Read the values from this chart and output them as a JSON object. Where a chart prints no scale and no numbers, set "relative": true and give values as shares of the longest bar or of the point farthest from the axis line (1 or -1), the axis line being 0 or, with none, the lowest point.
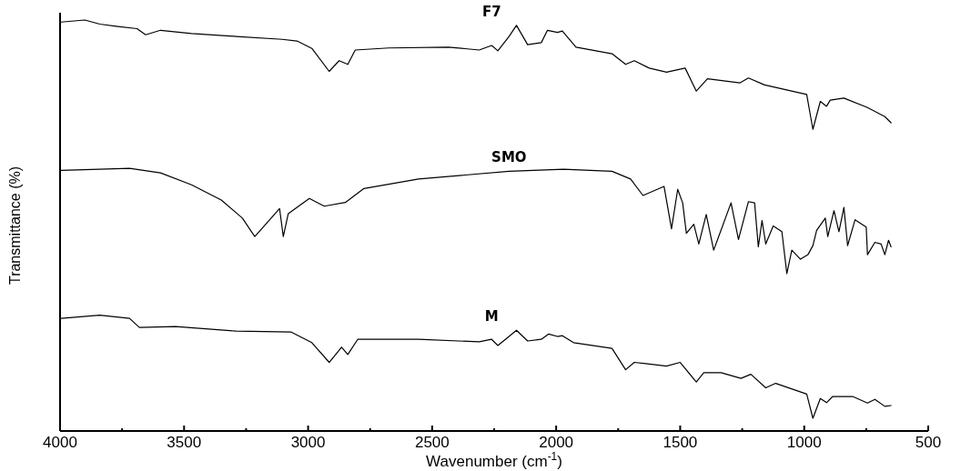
{
  "chart_data": {
    "type": "line",
    "relative": true,
    "xlabel": "Wavenumber (cm$^{-1}$)",
    "ylabel": "Transmittance (%)",
    "xlim": [
      4000,
      500
    ],
    "xticks": [
      4000,
      {
        "value": 3750,
        "label": null
      },
      3500,
      {
        "value": 3250,
        "label": null
      },
      3000,
      {
        "value": 2750,
        "label": null
      },
      2500,
      {
        "value": 2250,
        "label": null
      },
      2000,
      {
        "value": 1750,
        "label": null
      },
      1500,
      {
        "value": 1250,
        "label": null
      },
      1000,
      {
        "value": 750,
        "label": null
      },
      500
    ],
    "grid": false,
    "marker": "none",
    "line_style": "solid",
    "series": [
      {
        "name": "F7",
        "color": "#000000",
        "x": [
          3995,
          3900,
          3840,
          3775,
          3690,
          3655,
          3595,
          3470,
          3290,
          3105,
          3045,
          2985,
          2915,
          2875,
          2840,
          2810,
          2675,
          2435,
          2310,
          2260,
          2235,
          2190,
          2160,
          2115,
          2060,
          2035,
          1995,
          1975,
          1920,
          1775,
          1720,
          1685,
          1625,
          1555,
          1480,
          1435,
          1390,
          1260,
          1225,
          1160,
          990,
          965,
          935,
          910,
          895,
          840,
          745,
          675,
          650
        ],
        "values": [
          0.995,
          1.0,
          0.99,
          0.985,
          0.979,
          0.964,
          0.975,
          0.967,
          0.96,
          0.953,
          0.949,
          0.931,
          0.875,
          0.901,
          0.892,
          0.927,
          0.932,
          0.934,
          0.927,
          0.938,
          0.925,
          0.96,
          0.987,
          0.94,
          0.945,
          0.975,
          0.97,
          0.973,
          0.934,
          0.918,
          0.892,
          0.901,
          0.883,
          0.873,
          0.883,
          0.827,
          0.857,
          0.847,
          0.859,
          0.842,
          0.819,
          0.734,
          0.802,
          0.79,
          0.805,
          0.81,
          0.787,
          0.765,
          0.75
        ]
      },
      {
        "name": "SMO",
        "color": "#000000",
        "x": [
          3995,
          3720,
          3595,
          3470,
          3350,
          3265,
          3215,
          3115,
          3100,
          3080,
          2995,
          2935,
          2850,
          2775,
          2555,
          2190,
          1970,
          1775,
          1700,
          1650,
          1565,
          1535,
          1510,
          1490,
          1475,
          1445,
          1425,
          1395,
          1365,
          1295,
          1265,
          1225,
          1200,
          1185,
          1170,
          1155,
          1125,
          1090,
          1070,
          1050,
          1015,
          985,
          965,
          950,
          915,
          905,
          880,
          860,
          840,
          825,
          795,
          750,
          745,
          715,
          690,
          675,
          660,
          650
        ],
        "values": [
          0.634,
          0.639,
          0.628,
          0.599,
          0.562,
          0.518,
          0.473,
          0.541,
          0.473,
          0.529,
          0.566,
          0.547,
          0.556,
          0.59,
          0.613,
          0.632,
          0.637,
          0.632,
          0.613,
          0.573,
          0.595,
          0.492,
          0.588,
          0.555,
          0.481,
          0.503,
          0.455,
          0.527,
          0.44,
          0.555,
          0.466,
          0.558,
          0.555,
          0.448,
          0.512,
          0.455,
          0.499,
          0.485,
          0.383,
          0.44,
          0.418,
          0.429,
          0.451,
          0.488,
          0.518,
          0.473,
          0.536,
          0.485,
          0.544,
          0.451,
          0.514,
          0.496,
          0.429,
          0.459,
          0.455,
          0.429,
          0.464,
          0.448
        ]
      },
      {
        "name": "M",
        "color": "#000000",
        "x": [
          3995,
          3840,
          3720,
          3680,
          3535,
          3290,
          3070,
          2985,
          2915,
          2865,
          2840,
          2800,
          2555,
          2310,
          2260,
          2235,
          2190,
          2160,
          2115,
          2060,
          2030,
          1995,
          1975,
          1930,
          1775,
          1720,
          1685,
          1640,
          1555,
          1500,
          1435,
          1405,
          1335,
          1255,
          1215,
          1155,
          1115,
          990,
          965,
          935,
          910,
          885,
          805,
          745,
          715,
          675,
          650
        ],
        "values": [
          0.274,
          0.282,
          0.274,
          0.252,
          0.254,
          0.243,
          0.241,
          0.215,
          0.167,
          0.204,
          0.186,
          0.223,
          0.223,
          0.217,
          0.223,
          0.208,
          0.23,
          0.245,
          0.219,
          0.223,
          0.236,
          0.23,
          0.232,
          0.215,
          0.201,
          0.149,
          0.167,
          0.164,
          0.158,
          0.167,
          0.119,
          0.142,
          0.142,
          0.128,
          0.138,
          0.105,
          0.116,
          0.09,
          0.031,
          0.079,
          0.069,
          0.084,
          0.084,
          0.068,
          0.077,
          0.06,
          0.062
        ]
      }
    ]
  }
}
